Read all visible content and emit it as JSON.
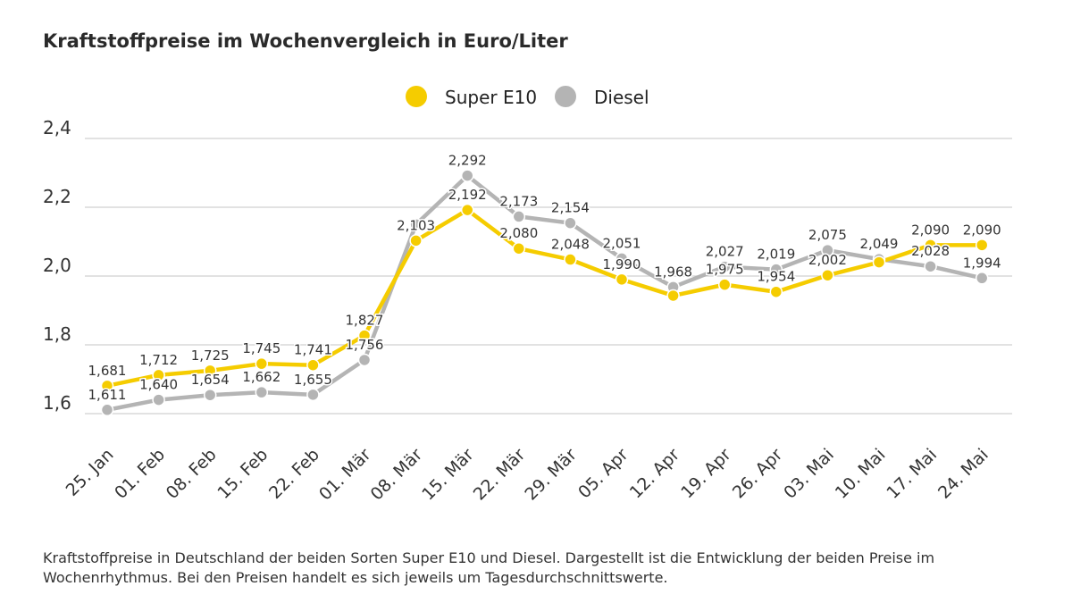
{
  "title": "Kraftstoffpreise im Wochenvergleich in Euro/Liter",
  "caption": "Kraftstoffpreise in Deutschland der beiden Sorten Super E10 und Diesel. Dargestellt ist die Entwicklung der beiden Preise im Wochenrhythmus. Bei den Preisen handelt es sich jeweils um Tagesdurchschnittswerte.",
  "colors": {
    "e10": "#F5CC00",
    "diesel": "#B4B4B4",
    "grid": "#D9D9D9"
  },
  "chart_data": {
    "type": "line",
    "title": "Kraftstoffpreise im Wochenvergleich in Euro/Liter",
    "xlabel": "",
    "ylabel": "",
    "ylim": [
      1.6,
      2.4
    ],
    "yticks": [
      "1,6",
      "1,8",
      "2,0",
      "2,2",
      "2,4"
    ],
    "yticks_values": [
      1.6,
      1.8,
      2.0,
      2.2,
      2.4
    ],
    "grid": true,
    "legend_position": "top-center",
    "categories": [
      "25. Jan",
      "01. Feb",
      "08. Feb",
      "15. Feb",
      "22. Feb",
      "01. Mär",
      "08. Mär",
      "15. Mär",
      "22. Mär",
      "29. Mär",
      "05. Apr",
      "12. Apr",
      "19. Apr",
      "26. Apr",
      "03. Mai",
      "10. Mai",
      "17. Mai",
      "24. Mai"
    ],
    "series": [
      {
        "name": "Super E10",
        "color": "#F5CC00",
        "values": [
          1.681,
          1.712,
          1.725,
          1.745,
          1.741,
          1.827,
          2.103,
          2.192,
          2.08,
          2.048,
          1.99,
          1.943,
          1.975,
          1.954,
          2.002,
          2.04,
          2.09,
          2.09
        ],
        "labels": [
          "1,681",
          "1,712",
          "1,725",
          "1,745",
          "1,741",
          "1,827",
          "2,103",
          "2,192",
          "2,080",
          "2,048",
          "1,990",
          "",
          "1,975",
          "1,954",
          "2,002",
          "",
          "2,090",
          "2,090"
        ]
      },
      {
        "name": "Diesel",
        "color": "#B4B4B4",
        "values": [
          1.611,
          1.64,
          1.654,
          1.662,
          1.655,
          1.756,
          2.15,
          2.292,
          2.173,
          2.154,
          2.051,
          1.968,
          2.027,
          2.019,
          2.075,
          2.049,
          2.028,
          1.994
        ],
        "labels": [
          "1,611",
          "1,640",
          "1,654",
          "1,662",
          "1,655",
          "1,756",
          "",
          "2,292",
          "2,173",
          "2,154",
          "2,051",
          "1,968",
          "2,027",
          "2,019",
          "2,075",
          "2,049",
          "2,028",
          "1,994"
        ]
      }
    ]
  }
}
